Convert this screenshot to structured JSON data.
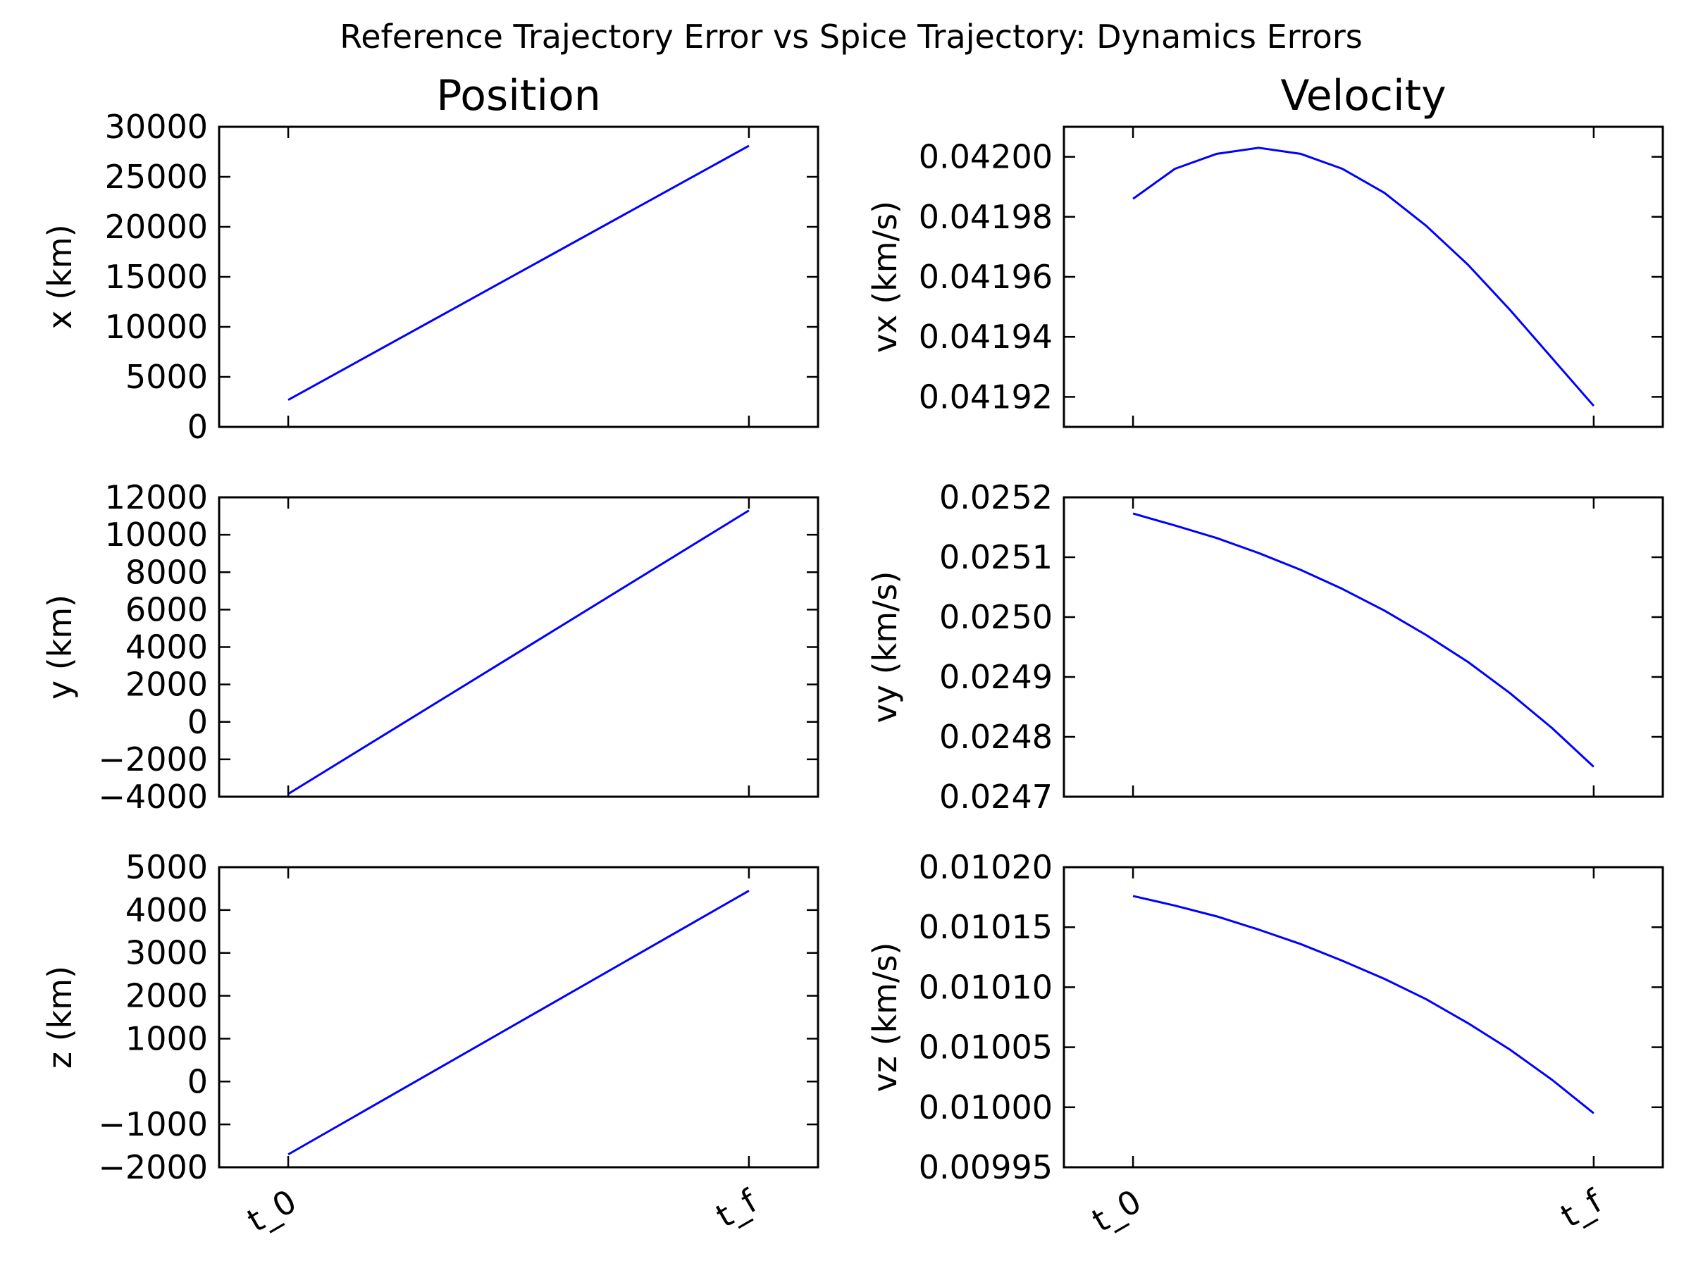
{
  "figure": {
    "suptitle": "Reference Trajectory Error vs Spice Trajectory: Dynamics Errors",
    "line_color": "#0000ff"
  },
  "chart_data": [
    {
      "id": "x",
      "type": "line",
      "title": "Position",
      "ylabel": "x (km)",
      "xlabel": "",
      "xlim": [
        -0.15,
        1.15
      ],
      "ylim": [
        0,
        30000
      ],
      "yticks": [
        0,
        5000,
        10000,
        15000,
        20000,
        25000,
        30000
      ],
      "ytick_labels": [
        "0",
        "5000",
        "10000",
        "15000",
        "20000",
        "25000",
        "30000"
      ],
      "xticks": [
        0,
        1
      ],
      "xtick_labels": [
        "t_0",
        "t_f"
      ],
      "show_xtick_labels": false,
      "grid": false,
      "x": [
        0,
        1
      ],
      "y": [
        2700,
        28100
      ]
    },
    {
      "id": "vx",
      "type": "line",
      "title": "Velocity",
      "ylabel": "vx (km/s)",
      "xlabel": "",
      "xlim": [
        -0.15,
        1.15
      ],
      "ylim": [
        0.04191,
        0.04201
      ],
      "yticks": [
        0.04192,
        0.04194,
        0.04196,
        0.04198,
        0.042
      ],
      "ytick_labels": [
        "0.04192",
        "0.04194",
        "0.04196",
        "0.04198",
        "0.04200"
      ],
      "xticks": [
        0,
        1
      ],
      "xtick_labels": [
        "t_0",
        "t_f"
      ],
      "show_xtick_labels": false,
      "grid": false,
      "x": [
        0,
        0.0909,
        0.1818,
        0.2727,
        0.3636,
        0.4545,
        0.5455,
        0.6364,
        0.7273,
        0.8182,
        0.9091,
        1
      ],
      "y": [
        0.041986,
        0.041996,
        0.042001,
        0.042003,
        0.042001,
        0.041996,
        0.041988,
        0.041977,
        0.041964,
        0.041949,
        0.041933,
        0.041917
      ]
    },
    {
      "id": "y",
      "type": "line",
      "title": "",
      "ylabel": "y (km)",
      "xlabel": "",
      "xlim": [
        -0.15,
        1.15
      ],
      "ylim": [
        -4000,
        12000
      ],
      "yticks": [
        -4000,
        -2000,
        0,
        2000,
        4000,
        6000,
        8000,
        10000,
        12000
      ],
      "ytick_labels": [
        "−4000",
        "−2000",
        "0",
        "2000",
        "4000",
        "6000",
        "8000",
        "10000",
        "12000"
      ],
      "xticks": [
        0,
        1
      ],
      "xtick_labels": [
        "t_0",
        "t_f"
      ],
      "show_xtick_labels": false,
      "grid": false,
      "x": [
        0,
        1
      ],
      "y": [
        -3850,
        11300
      ]
    },
    {
      "id": "vy",
      "type": "line",
      "title": "",
      "ylabel": "vy (km/s)",
      "xlabel": "",
      "xlim": [
        -0.15,
        1.15
      ],
      "ylim": [
        0.0247,
        0.0252
      ],
      "yticks": [
        0.0247,
        0.0248,
        0.0249,
        0.025,
        0.0251,
        0.0252
      ],
      "ytick_labels": [
        "0.0247",
        "0.0248",
        "0.0249",
        "0.0250",
        "0.0251",
        "0.0252"
      ],
      "xticks": [
        0,
        1
      ],
      "xtick_labels": [
        "t_0",
        "t_f"
      ],
      "show_xtick_labels": false,
      "grid": false,
      "x": [
        0,
        0.0909,
        0.1818,
        0.2727,
        0.3636,
        0.4545,
        0.5455,
        0.6364,
        0.7273,
        0.8182,
        0.9091,
        1
      ],
      "y": [
        0.025173,
        0.025153,
        0.025132,
        0.025107,
        0.025079,
        0.025047,
        0.025011,
        0.02497,
        0.024925,
        0.024873,
        0.024815,
        0.02475
      ]
    },
    {
      "id": "z",
      "type": "line",
      "title": "",
      "ylabel": "z (km)",
      "xlabel": "",
      "xlim": [
        -0.15,
        1.15
      ],
      "ylim": [
        -2000,
        5000
      ],
      "yticks": [
        -2000,
        -1000,
        0,
        1000,
        2000,
        3000,
        4000,
        5000
      ],
      "ytick_labels": [
        "−2000",
        "−1000",
        "0",
        "1000",
        "2000",
        "3000",
        "4000",
        "5000"
      ],
      "xticks": [
        0,
        1
      ],
      "xtick_labels": [
        "t_0",
        "t_f"
      ],
      "show_xtick_labels": true,
      "grid": false,
      "x": [
        0,
        1
      ],
      "y": [
        -1700,
        4450
      ]
    },
    {
      "id": "vz",
      "type": "line",
      "title": "",
      "ylabel": "vz (km/s)",
      "xlabel": "",
      "xlim": [
        -0.15,
        1.15
      ],
      "ylim": [
        0.00995,
        0.0102
      ],
      "yticks": [
        0.00995,
        0.01,
        0.01005,
        0.0101,
        0.01015,
        0.0102
      ],
      "ytick_labels": [
        "0.00995",
        "0.01000",
        "0.01005",
        "0.01010",
        "0.01015",
        "0.01020"
      ],
      "xticks": [
        0,
        1
      ],
      "xtick_labels": [
        "t_0",
        "t_f"
      ],
      "show_xtick_labels": true,
      "grid": false,
      "x": [
        0,
        0.0909,
        0.1818,
        0.2727,
        0.3636,
        0.4545,
        0.5455,
        0.6364,
        0.7273,
        0.8182,
        0.9091,
        1
      ],
      "y": [
        0.010176,
        0.010168,
        0.010159,
        0.010148,
        0.010136,
        0.010122,
        0.010107,
        0.01009,
        0.01007,
        0.010048,
        0.010023,
        0.009995
      ]
    }
  ]
}
